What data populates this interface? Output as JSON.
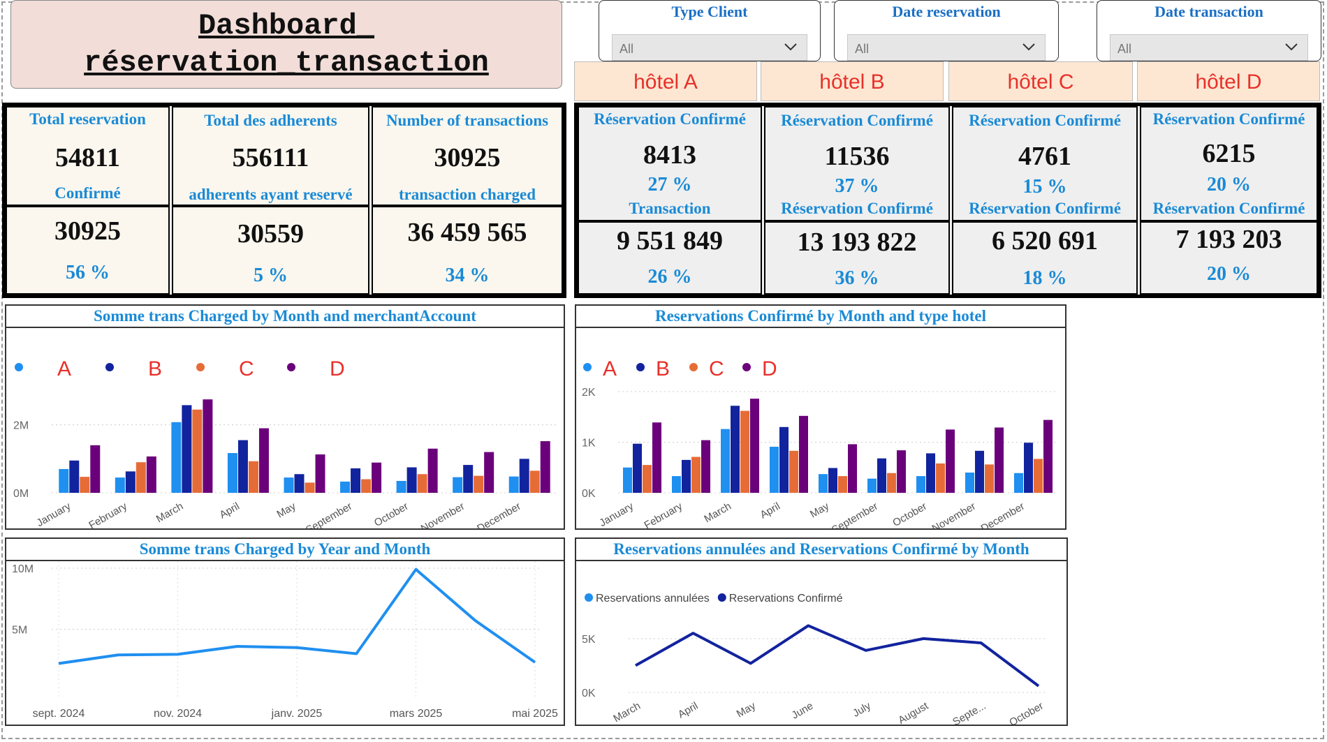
{
  "title": {
    "line1": "Dashboard_",
    "line2": "réservation_transaction"
  },
  "slicers": [
    {
      "label": "Type Client",
      "value": "All"
    },
    {
      "label": "Date reservation",
      "value": "All"
    },
    {
      "label": "Date transaction",
      "value": "All"
    }
  ],
  "global_kpis": [
    {
      "label_top": "Total reservation",
      "value_top": "54811",
      "label_mid": "Confirmé",
      "value_bottom": "30925",
      "pct": "56 %"
    },
    {
      "label_top": "Total des adherents",
      "value_top": "556111",
      "label_mid": "adherents ayant reservé",
      "value_bottom": "30559",
      "pct": "5 %"
    },
    {
      "label_top": "Number of transactions",
      "value_top": "30925",
      "label_mid": "transaction charged",
      "value_bottom": "36 459 565",
      "pct": "34 %"
    }
  ],
  "hotels": [
    {
      "name": "hôtel A",
      "label_top": "Réservation Confirmé",
      "value_top": "8413",
      "pct_top": "27 %",
      "label_mid": "Transaction",
      "value_bottom": "9 551 849",
      "pct_bottom": "26 %"
    },
    {
      "name": "hôtel B",
      "label_top": "Réservation Confirmé",
      "value_top": "11536",
      "pct_top": "37 %",
      "label_mid": "Réservation Confirmé",
      "value_bottom": "13 193 822",
      "pct_bottom": "36 %"
    },
    {
      "name": "hôtel C",
      "label_top": "Réservation Confirmé",
      "value_top": "4761",
      "pct_top": "15 %",
      "label_mid": "Réservation Confirmé",
      "value_bottom": "6 520 691",
      "pct_bottom": "18 %"
    },
    {
      "name": "hôtel D",
      "label_top": "Réservation Confirmé",
      "value_top": "6215",
      "pct_top": "20 %",
      "label_mid": "Réservation Confirmé",
      "value_bottom": "7 193 203",
      "pct_bottom": "20 %"
    }
  ],
  "colors": {
    "A": "#1f8ff0",
    "B": "#12239e",
    "C": "#e66c37",
    "D": "#6b007b",
    "line": "#1f8ff0",
    "accent": "#1a8ad6"
  },
  "chart_data": [
    {
      "type": "bar",
      "title": "Somme trans Charged by Month and merchantAccount",
      "categories": [
        "January",
        "February",
        "March",
        "April",
        "May",
        "September",
        "October",
        "November",
        "December"
      ],
      "legend": [
        "A",
        "B",
        "C",
        "D"
      ],
      "yticks": [
        "0M",
        "2M"
      ],
      "ylim": [
        0,
        3000000
      ],
      "series": [
        {
          "name": "A",
          "values": [
            700000,
            450000,
            2080000,
            1170000,
            450000,
            330000,
            350000,
            460000,
            480000
          ]
        },
        {
          "name": "B",
          "values": [
            950000,
            630000,
            2580000,
            1550000,
            550000,
            720000,
            750000,
            820000,
            1000000
          ]
        },
        {
          "name": "C",
          "values": [
            470000,
            900000,
            2450000,
            930000,
            300000,
            400000,
            550000,
            500000,
            650000
          ]
        },
        {
          "name": "D",
          "values": [
            1400000,
            1070000,
            2750000,
            1900000,
            1130000,
            890000,
            1300000,
            1200000,
            1520000
          ]
        }
      ]
    },
    {
      "type": "bar",
      "title": "Reservations Confirmé by Month and type hotel",
      "categories": [
        "January",
        "February",
        "March",
        "April",
        "May",
        "September",
        "October",
        "November",
        "December"
      ],
      "legend": [
        "A",
        "B",
        "C",
        "D"
      ],
      "yticks": [
        "0K",
        "1K",
        "2K"
      ],
      "ylim": [
        0,
        2000
      ],
      "series": [
        {
          "name": "A",
          "values": [
            500,
            330,
            1260,
            910,
            370,
            280,
            330,
            400,
            390
          ]
        },
        {
          "name": "B",
          "values": [
            970,
            650,
            1720,
            1300,
            490,
            680,
            780,
            830,
            990
          ]
        },
        {
          "name": "C",
          "values": [
            550,
            710,
            1620,
            830,
            330,
            390,
            580,
            560,
            670
          ]
        },
        {
          "name": "D",
          "values": [
            1390,
            1040,
            1860,
            1520,
            960,
            840,
            1250,
            1290,
            1440
          ]
        }
      ]
    },
    {
      "type": "line",
      "title": "Somme trans Charged by Year and Month",
      "x": [
        "sept. 2024",
        "oct. 2024",
        "nov. 2024",
        "déc. 2024",
        "janv. 2025",
        "févr. 2025",
        "mars 2025",
        "avr. 2025",
        "mai 2025"
      ],
      "xticks": [
        "sept. 2024",
        "nov. 2024",
        "janv. 2025",
        "mars 2025",
        "mai 2025"
      ],
      "yticks": [
        "5M",
        "10M"
      ],
      "ylim": [
        0,
        10000000
      ],
      "values": [
        2200000,
        2900000,
        2950000,
        3600000,
        3500000,
        3000000,
        9900000,
        5700000,
        2300000
      ]
    },
    {
      "type": "line",
      "title": "Reservations annulées and Reservations Confirmé by Month",
      "categories": [
        "March",
        "April",
        "May",
        "June",
        "July",
        "August",
        "Septe...",
        "October"
      ],
      "legend": [
        "Reservations annulées",
        "Reservations Confirmé"
      ],
      "yticks": [
        "0K",
        "5K"
      ],
      "ylim": [
        0,
        7000
      ],
      "series": [
        {
          "name": "Reservations annulées",
          "values": [
            0,
            0,
            0,
            0,
            0,
            0,
            0,
            0
          ]
        },
        {
          "name": "Reservations Confirmé",
          "values": [
            2500,
            5500,
            2700,
            6200,
            3900,
            5000,
            4600,
            600
          ]
        }
      ]
    }
  ]
}
